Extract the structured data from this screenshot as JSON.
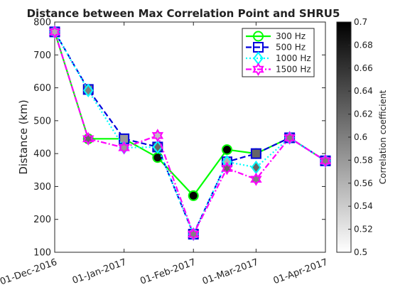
{
  "chart_data": {
    "type": "line",
    "title": "Distance between Max Correlation Point and SHRU5",
    "xlabel": "",
    "ylabel": "Distance (km)",
    "ylim": [
      100,
      800
    ],
    "yticks": [
      100,
      200,
      300,
      400,
      500,
      600,
      700,
      800
    ],
    "x_tick_dates": [
      "2016-12-01",
      "2017-01-01",
      "2017-02-01",
      "2017-03-01",
      "2017-04-01"
    ],
    "x_tick_labels": [
      "01-Dec-2016",
      "01-Jan-2017",
      "01-Feb-2017",
      "01-Mar-2017",
      "01-Apr-2017"
    ],
    "x": [
      "2016-12-01",
      "2016-12-16",
      "2017-01-01",
      "2017-01-16",
      "2017-02-01",
      "2017-02-16",
      "2017-03-01",
      "2017-03-16",
      "2017-04-01"
    ],
    "series": [
      {
        "name": "300 Hz",
        "color": "#00ff00",
        "line_style": "solid",
        "marker": "circle",
        "values": [
          770,
          445,
          445,
          388,
          272,
          412,
          400,
          448,
          378
        ],
        "correlation": [
          0.56,
          0.62,
          0.59,
          0.69,
          0.7,
          0.7,
          0.66,
          0.6,
          0.6
        ]
      },
      {
        "name": "500 Hz",
        "color": "#0000dd",
        "line_style": "dashed",
        "marker": "square",
        "values": [
          770,
          595,
          445,
          420,
          155,
          375,
          400,
          448,
          378
        ],
        "correlation": [
          0.56,
          0.6,
          0.58,
          0.62,
          0.56,
          0.56,
          0.62,
          0.6,
          0.6
        ]
      },
      {
        "name": "1000 Hz",
        "color": "#00ffff",
        "line_style": "dotted",
        "marker": "diamond",
        "values": [
          770,
          592,
          418,
          420,
          155,
          375,
          358,
          448,
          378
        ],
        "correlation": [
          0.56,
          0.6,
          0.55,
          0.62,
          0.56,
          0.56,
          0.62,
          0.6,
          0.6
        ]
      },
      {
        "name": "1500 Hz",
        "color": "#ff00ff",
        "line_style": "dashdot",
        "marker": "hexagram",
        "values": [
          770,
          445,
          418,
          455,
          155,
          355,
          322,
          448,
          378
        ],
        "correlation": [
          0.56,
          0.62,
          0.58,
          0.55,
          0.6,
          0.62,
          0.6,
          0.6,
          0.6
        ]
      }
    ],
    "legend_position": "top-right",
    "grid": false,
    "colorbar": {
      "label": "Correlation coefficient",
      "range": [
        0.5,
        0.7
      ],
      "ticks": [
        0.5,
        0.52,
        0.54,
        0.56,
        0.58,
        0.6,
        0.62,
        0.64,
        0.66,
        0.68,
        0.7
      ],
      "tick_labels": [
        "0.5",
        "0.52",
        "0.54",
        "0.56",
        "0.58",
        "0.6",
        "0.62",
        "0.64",
        "0.66",
        "0.68",
        "0.7"
      ],
      "colormap": "gray-reversed (white = 0.5, black = 0.7)"
    }
  }
}
